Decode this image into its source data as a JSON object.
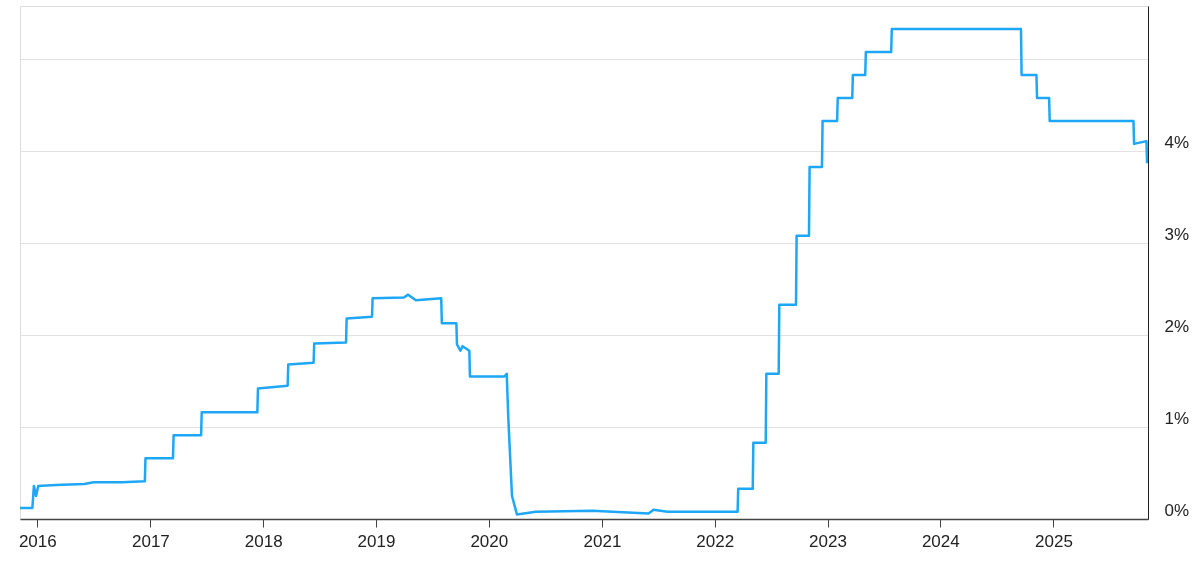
{
  "chart_data": {
    "type": "line",
    "color": "#1ea7f7",
    "line_style": "solid",
    "marker": "none",
    "grid": "y",
    "x": [
      "2015-11-06",
      "2015-12-16",
      "2015-12-21",
      "2015-12-28",
      "2016-01-04",
      "2016-03-01",
      "2016-06-01",
      "2016-07-01",
      "2016-10-01",
      "2016-12-14",
      "2016-12-16",
      "2017-03-15",
      "2017-03-17",
      "2017-06-14",
      "2017-06-16",
      "2017-12-13",
      "2017-12-15",
      "2018-03-21",
      "2018-03-23",
      "2018-06-13",
      "2018-06-15",
      "2018-09-26",
      "2018-09-28",
      "2018-12-19",
      "2018-12-21",
      "2019-04-01",
      "2019-04-15",
      "2019-05-10",
      "2019-07-31",
      "2019-08-02",
      "2019-09-18",
      "2019-09-20",
      "2019-10-01",
      "2019-10-08",
      "2019-10-30",
      "2019-11-01",
      "2020-02-20",
      "2020-02-28",
      "2020-03-04",
      "2020-03-16",
      "2020-04-01",
      "2020-06-01",
      "2020-12-01",
      "2021-06-01",
      "2021-06-17",
      "2021-08-01",
      "2022-03-16",
      "2022-03-18",
      "2022-05-04",
      "2022-05-06",
      "2022-06-15",
      "2022-06-17",
      "2022-07-27",
      "2022-07-29",
      "2022-09-21",
      "2022-09-23",
      "2022-11-02",
      "2022-11-04",
      "2022-12-14",
      "2022-12-16",
      "2023-02-01",
      "2023-02-03",
      "2023-03-22",
      "2023-03-24",
      "2023-05-03",
      "2023-05-05",
      "2023-07-26",
      "2023-07-28",
      "2024-09-18",
      "2024-09-20",
      "2024-11-07",
      "2024-11-09",
      "2024-12-18",
      "2024-12-20",
      "2025-09-17",
      "2025-09-19",
      "2025-10-29",
      "2025-10-31"
    ],
    "values": [
      0.12,
      0.12,
      0.36,
      0.25,
      0.36,
      0.37,
      0.38,
      0.4,
      0.4,
      0.41,
      0.66,
      0.66,
      0.91,
      0.91,
      1.16,
      1.16,
      1.42,
      1.45,
      1.68,
      1.7,
      1.91,
      1.92,
      2.18,
      2.2,
      2.4,
      2.41,
      2.44,
      2.38,
      2.4,
      2.13,
      2.13,
      1.9,
      1.83,
      1.88,
      1.83,
      1.55,
      1.55,
      1.58,
      1.1,
      0.25,
      0.05,
      0.08,
      0.09,
      0.06,
      0.1,
      0.08,
      0.08,
      0.33,
      0.33,
      0.83,
      0.83,
      1.58,
      1.58,
      2.33,
      2.33,
      3.08,
      3.08,
      3.83,
      3.83,
      4.33,
      4.33,
      4.58,
      4.58,
      4.83,
      4.83,
      5.08,
      5.08,
      5.33,
      5.33,
      4.83,
      4.83,
      4.58,
      4.58,
      4.33,
      4.33,
      4.08,
      4.11,
      3.87
    ],
    "xlim": [
      "2015-11-06",
      "2025-11-03"
    ],
    "xticks": [
      {
        "value": "2016-01-01",
        "label": "2016"
      },
      {
        "value": "2017-01-01",
        "label": "2017"
      },
      {
        "value": "2018-01-01",
        "label": "2018"
      },
      {
        "value": "2019-01-01",
        "label": "2019"
      },
      {
        "value": "2020-01-01",
        "label": "2020"
      },
      {
        "value": "2021-01-01",
        "label": "2021"
      },
      {
        "value": "2022-01-01",
        "label": "2022"
      },
      {
        "value": "2023-01-01",
        "label": "2023"
      },
      {
        "value": "2024-01-01",
        "label": "2024"
      },
      {
        "value": "2025-01-01",
        "label": "2025"
      }
    ],
    "ylim": [
      0,
      5.58
    ],
    "yticks": [
      {
        "value": 0,
        "label": "0%"
      },
      {
        "value": 1,
        "label": "1%"
      },
      {
        "value": 2,
        "label": "2%"
      },
      {
        "value": 3,
        "label": "3%"
      },
      {
        "value": 4,
        "label": "4%"
      },
      {
        "value": 5,
        "label": null
      }
    ]
  }
}
